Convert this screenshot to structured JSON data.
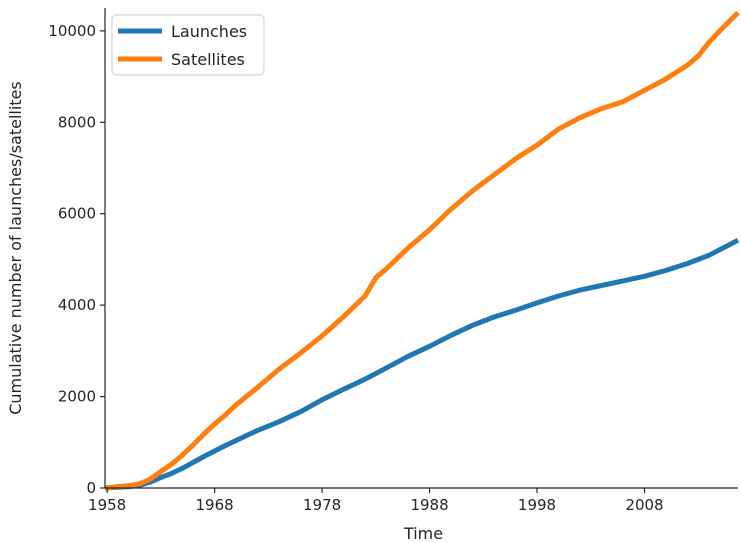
{
  "colors": {
    "launches": "#1f77b4",
    "satellites": "#ff7f0e",
    "axis": "#262626",
    "legend_border": "#cccccc"
  },
  "chart_data": {
    "type": "line",
    "title": "",
    "xlabel": "Time",
    "ylabel": "Cumulative number of launches/satellites",
    "xlim": [
      1957.8,
      2016.7
    ],
    "ylim": [
      0,
      10500
    ],
    "x_ticks": [
      1958,
      1968,
      1978,
      1988,
      1998,
      2008
    ],
    "x_tick_labels": [
      "1958",
      "1968",
      "1978",
      "1988",
      "1998",
      "2008"
    ],
    "y_ticks": [
      0,
      2000,
      4000,
      6000,
      8000,
      10000
    ],
    "y_tick_labels": [
      "0",
      "2000",
      "4000",
      "6000",
      "8000",
      "10000"
    ],
    "grid": false,
    "legend_position": "upper-left",
    "series": [
      {
        "name": "Launches",
        "color": "#1f77b4",
        "x": [
          1957.8,
          1959,
          1960,
          1961,
          1962,
          1963,
          1964,
          1965,
          1966,
          1967,
          1968,
          1969,
          1970,
          1971,
          1972,
          1974,
          1976,
          1978,
          1980,
          1982,
          1984,
          1986,
          1988,
          1990,
          1992,
          1994,
          1996,
          1998,
          2000,
          2002,
          2004,
          2006,
          2008,
          2010,
          2012,
          2014,
          2016.7
        ],
        "y": [
          0,
          15,
          30,
          60,
          130,
          230,
          320,
          430,
          560,
          690,
          810,
          930,
          1040,
          1150,
          1260,
          1450,
          1670,
          1930,
          2160,
          2380,
          2630,
          2880,
          3100,
          3340,
          3560,
          3740,
          3890,
          4050,
          4200,
          4330,
          4430,
          4530,
          4630,
          4760,
          4910,
          5090,
          5420
        ]
      },
      {
        "name": "Satellites",
        "color": "#ff7f0e",
        "x": [
          1957.8,
          1959,
          1960,
          1961,
          1962,
          1963,
          1964,
          1965,
          1966,
          1967,
          1968,
          1969,
          1970,
          1972,
          1974,
          1976,
          1978,
          1980,
          1982,
          1983,
          1984,
          1986,
          1988,
          1990,
          1992,
          1994,
          1996,
          1998,
          2000,
          2002,
          2004,
          2006,
          2008,
          2010,
          2012,
          2013,
          2014,
          2015,
          2016.7
        ],
        "y": [
          0,
          30,
          50,
          90,
          190,
          360,
          520,
          720,
          940,
          1180,
          1400,
          1600,
          1820,
          2200,
          2600,
          2950,
          3330,
          3750,
          4200,
          4600,
          4800,
          5250,
          5650,
          6100,
          6500,
          6850,
          7200,
          7500,
          7850,
          8100,
          8300,
          8450,
          8700,
          8950,
          9250,
          9450,
          9750,
          10000,
          10400
        ]
      }
    ]
  }
}
